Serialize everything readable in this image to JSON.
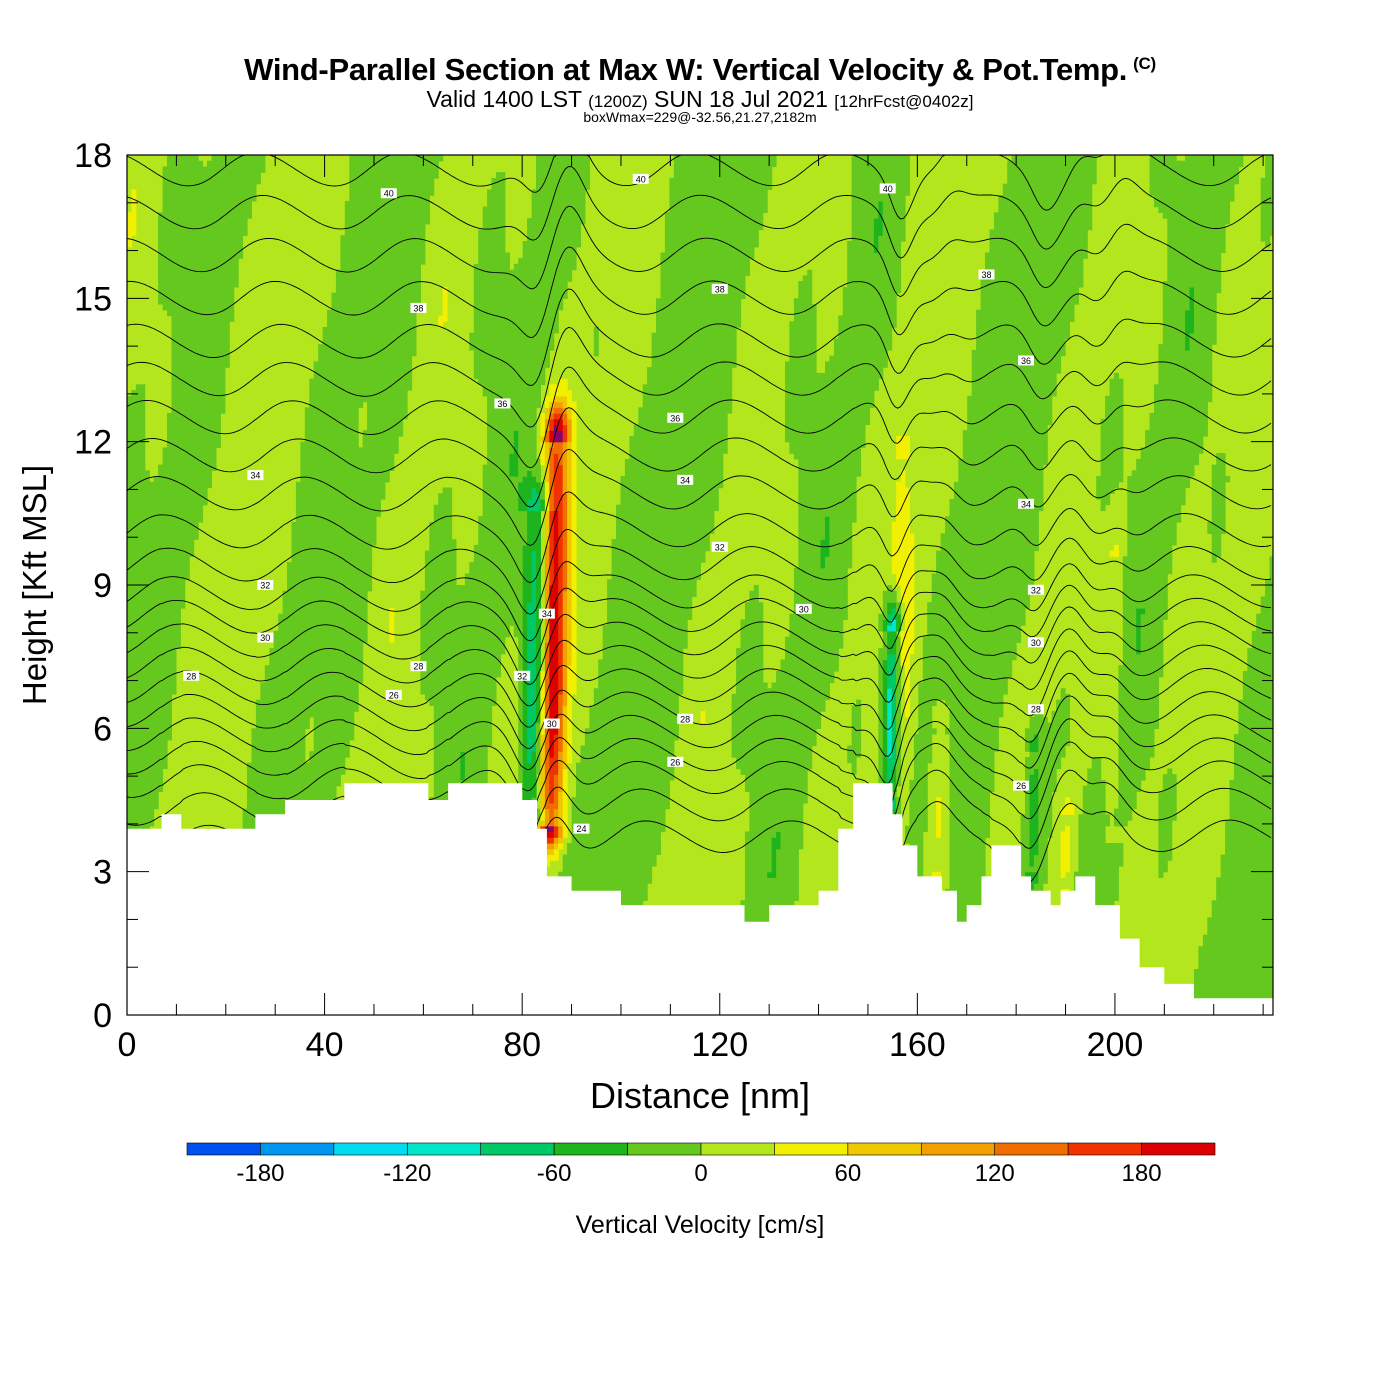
{
  "chart_data": {
    "type": "heatmap",
    "title": "Wind-Parallel Section at Max W: Vertical Velocity & Pot.Temp.",
    "title_mark": "(C)",
    "subtitle_main": "Valid 1400 LST",
    "subtitle_utc": "(1200Z)",
    "subtitle_date": "SUN 18 Jul 2021",
    "subtitle_fcst": "[12hrFcst@0402z]",
    "subtitle2": "boxWmax=229@-32.56,21.27,2182m",
    "xlabel": "Distance [nm]",
    "ylabel": "Height [Kft MSL]",
    "xlim": [
      0,
      232
    ],
    "ylim": [
      0,
      18
    ],
    "x_ticks": [
      0,
      40,
      80,
      120,
      160,
      200
    ],
    "y_ticks": [
      0,
      3,
      6,
      9,
      12,
      15,
      18
    ],
    "grid": false,
    "colorbar": {
      "label": "Vertical Velocity [cm/s]",
      "tick_values": [
        -180,
        -120,
        -60,
        0,
        60,
        120,
        180
      ],
      "bin_edges": [
        -210,
        -180,
        -150,
        -120,
        -90,
        -60,
        -30,
        0,
        30,
        60,
        90,
        120,
        150,
        180,
        210
      ],
      "colors": [
        "#0000f0",
        "#0050f0",
        "#0096f0",
        "#00dcf0",
        "#00e6c8",
        "#00c864",
        "#1eb41e",
        "#64c81e",
        "#b4e61e",
        "#f0f000",
        "#f0c800",
        "#f0a000",
        "#f06e00",
        "#f03200",
        "#dc0000",
        "#a00050",
        "#8c006e"
      ]
    },
    "terrain_top_kft": [
      [
        0,
        3.9
      ],
      [
        7,
        3.9
      ],
      [
        7,
        4.2
      ],
      [
        11,
        4.2
      ],
      [
        11,
        3.9
      ],
      [
        26,
        3.9
      ],
      [
        26,
        4.2
      ],
      [
        32,
        4.2
      ],
      [
        32,
        4.5
      ],
      [
        44,
        4.5
      ],
      [
        44,
        4.85
      ],
      [
        61,
        4.85
      ],
      [
        61,
        4.5
      ],
      [
        65,
        4.5
      ],
      [
        65,
        4.85
      ],
      [
        80,
        4.85
      ],
      [
        80,
        4.5
      ],
      [
        83,
        4.5
      ],
      [
        83,
        3.9
      ],
      [
        85,
        3.9
      ],
      [
        85,
        2.9
      ],
      [
        90,
        2.9
      ],
      [
        90,
        2.6
      ],
      [
        100,
        2.6
      ],
      [
        100,
        2.3
      ],
      [
        125,
        2.3
      ],
      [
        125,
        1.95
      ],
      [
        130,
        1.95
      ],
      [
        130,
        2.3
      ],
      [
        140,
        2.3
      ],
      [
        140,
        2.6
      ],
      [
        144,
        2.6
      ],
      [
        144,
        3.9
      ],
      [
        147,
        3.9
      ],
      [
        147,
        4.85
      ],
      [
        155,
        4.85
      ],
      [
        155,
        4.2
      ],
      [
        157,
        4.2
      ],
      [
        157,
        3.55
      ],
      [
        160,
        3.55
      ],
      [
        160,
        2.9
      ],
      [
        165,
        2.9
      ],
      [
        165,
        2.6
      ],
      [
        168,
        2.6
      ],
      [
        168,
        1.95
      ],
      [
        170,
        1.95
      ],
      [
        170,
        2.3
      ],
      [
        173,
        2.3
      ],
      [
        173,
        2.9
      ],
      [
        175,
        2.9
      ],
      [
        175,
        3.55
      ],
      [
        181,
        3.55
      ],
      [
        181,
        2.9
      ],
      [
        183,
        2.9
      ],
      [
        183,
        2.6
      ],
      [
        187,
        2.6
      ],
      [
        187,
        2.3
      ],
      [
        189,
        2.3
      ],
      [
        189,
        2.6
      ],
      [
        192,
        2.6
      ],
      [
        192,
        2.9
      ],
      [
        196,
        2.9
      ],
      [
        196,
        2.3
      ],
      [
        201,
        2.3
      ],
      [
        201,
        1.6
      ],
      [
        205,
        1.6
      ],
      [
        205,
        1.0
      ],
      [
        210,
        1.0
      ],
      [
        210,
        0.65
      ],
      [
        216,
        0.65
      ],
      [
        216,
        0.35
      ],
      [
        232,
        0.35
      ]
    ],
    "w_features": [
      {
        "x": 85.5,
        "ybot": 4.0,
        "ytop": 12.0,
        "w": 2.6,
        "peak": 229
      },
      {
        "x": 82.3,
        "ybot": 4.3,
        "ytop": 10.5,
        "w": 2.6,
        "peak": -120
      },
      {
        "x": 154.5,
        "ybot": 4.6,
        "ytop": 8.0,
        "w": 1.8,
        "peak": -165
      },
      {
        "x": 155.5,
        "ybot": 3.6,
        "ytop": 11.6,
        "w": 2.2,
        "peak": 50
      },
      {
        "x": 164,
        "ybot": 3.0,
        "ytop": 6.0,
        "w": 2.2,
        "peak": 40
      },
      {
        "x": 199,
        "ybot": 4.0,
        "ytop": 9.6,
        "w": 2.0,
        "peak": 35
      },
      {
        "x": 190,
        "ybot": 2.6,
        "ytop": 4.2,
        "w": 2.0,
        "peak": 40
      },
      {
        "x": 183,
        "ybot": 3.0,
        "ytop": 5.5,
        "w": 2.0,
        "peak": -60
      }
    ],
    "theta_labels": [
      {
        "text": "40",
        "x": 53,
        "y": 17.2
      },
      {
        "text": "40",
        "x": 104,
        "y": 17.5
      },
      {
        "text": "40",
        "x": 154,
        "y": 17.3
      },
      {
        "text": "38",
        "x": 59,
        "y": 14.8
      },
      {
        "text": "38",
        "x": 120,
        "y": 15.2
      },
      {
        "text": "38",
        "x": 174,
        "y": 15.5
      },
      {
        "text": "36",
        "x": 76,
        "y": 12.8
      },
      {
        "text": "36",
        "x": 111,
        "y": 12.5
      },
      {
        "text": "36",
        "x": 182,
        "y": 13.7
      },
      {
        "text": "34",
        "x": 26,
        "y": 11.3
      },
      {
        "text": "34",
        "x": 113,
        "y": 11.2
      },
      {
        "text": "34",
        "x": 182,
        "y": 10.7
      },
      {
        "text": "32",
        "x": 120,
        "y": 9.8
      },
      {
        "text": "32",
        "x": 28,
        "y": 9.0
      },
      {
        "text": "32",
        "x": 184,
        "y": 8.9
      },
      {
        "text": "30",
        "x": 137,
        "y": 8.5
      },
      {
        "text": "30",
        "x": 28,
        "y": 7.9
      },
      {
        "text": "30",
        "x": 184,
        "y": 7.8
      },
      {
        "text": "28",
        "x": 13,
        "y": 7.1
      },
      {
        "text": "28",
        "x": 59,
        "y": 7.3
      },
      {
        "text": "28",
        "x": 113,
        "y": 6.2
      },
      {
        "text": "28",
        "x": 184,
        "y": 6.4
      },
      {
        "text": "26",
        "x": 54,
        "y": 6.7
      },
      {
        "text": "26",
        "x": 111,
        "y": 5.3
      },
      {
        "text": "26",
        "x": 181,
        "y": 4.8
      },
      {
        "text": "24",
        "x": 92,
        "y": 3.9
      },
      {
        "text": "34",
        "x": 85,
        "y": 8.4
      },
      {
        "text": "32",
        "x": 80,
        "y": 7.1
      },
      {
        "text": "30",
        "x": 86,
        "y": 6.1
      }
    ]
  }
}
